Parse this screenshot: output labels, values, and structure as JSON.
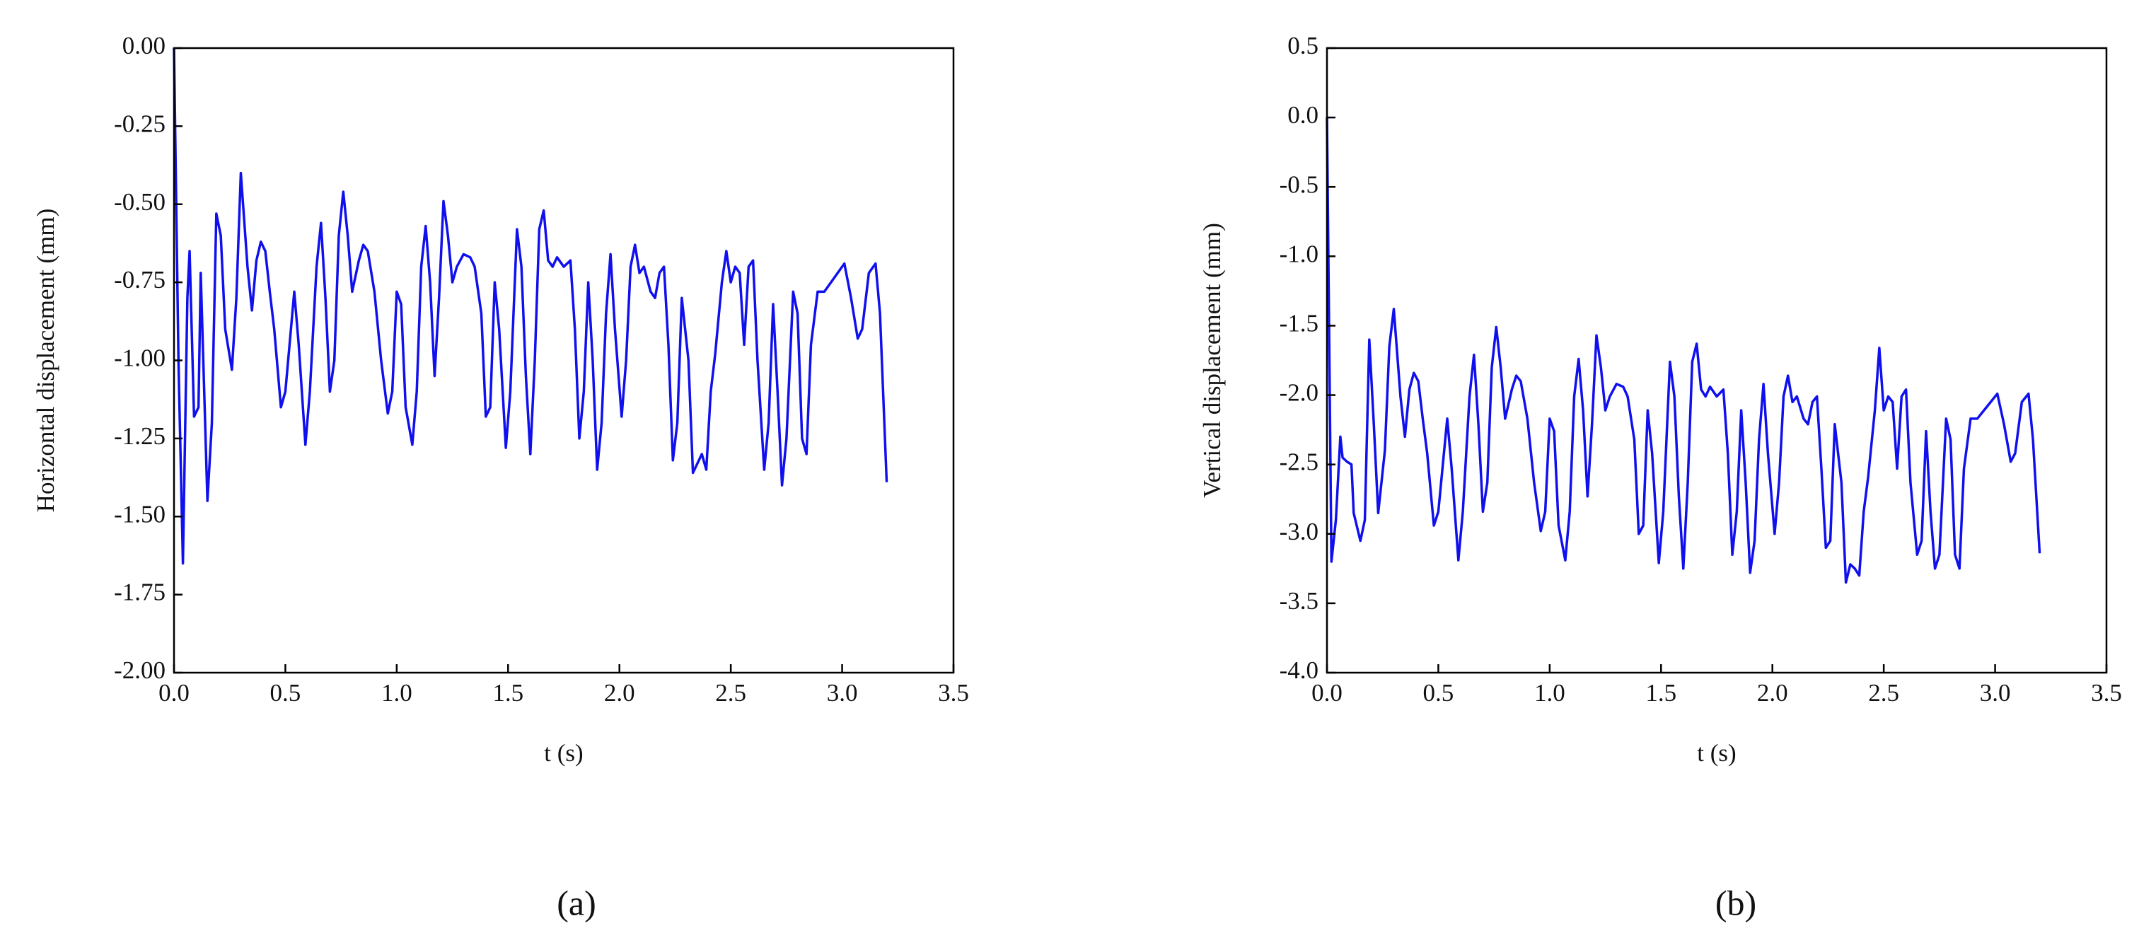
{
  "chart_data": [
    {
      "type": "line",
      "x": [
        0.0,
        0.02,
        0.04,
        0.06,
        0.07,
        0.09,
        0.11,
        0.12,
        0.15,
        0.17,
        0.19,
        0.21,
        0.23,
        0.26,
        0.28,
        0.3,
        0.33,
        0.35,
        0.37,
        0.39,
        0.41,
        0.43,
        0.45,
        0.48,
        0.5,
        0.54,
        0.56,
        0.59,
        0.61,
        0.64,
        0.66,
        0.68,
        0.7,
        0.72,
        0.74,
        0.76,
        0.78,
        0.8,
        0.83,
        0.85,
        0.87,
        0.9,
        0.93,
        0.96,
        0.98,
        1.0,
        1.02,
        1.04,
        1.07,
        1.09,
        1.11,
        1.13,
        1.15,
        1.17,
        1.19,
        1.21,
        1.23,
        1.25,
        1.27,
        1.3,
        1.33,
        1.35,
        1.38,
        1.4,
        1.42,
        1.44,
        1.46,
        1.49,
        1.51,
        1.54,
        1.56,
        1.58,
        1.6,
        1.62,
        1.64,
        1.66,
        1.68,
        1.7,
        1.72,
        1.75,
        1.78,
        1.8,
        1.82,
        1.84,
        1.86,
        1.88,
        1.9,
        1.92,
        1.94,
        1.96,
        1.98,
        2.01,
        2.03,
        2.05,
        2.07,
        2.09,
        2.11,
        2.14,
        2.16,
        2.18,
        2.2,
        2.22,
        2.24,
        2.26,
        2.28,
        2.31,
        2.33,
        2.35,
        2.37,
        2.39,
        2.41,
        2.43,
        2.46,
        2.48,
        2.5,
        2.52,
        2.54,
        2.56,
        2.58,
        2.6,
        2.62,
        2.65,
        2.67,
        2.69,
        2.71,
        2.73,
        2.75,
        2.78,
        2.8,
        2.82,
        2.84,
        2.86,
        2.89,
        2.92,
        2.95,
        2.98,
        3.01,
        3.04,
        3.07,
        3.09,
        3.12,
        3.15,
        3.17,
        3.2
      ],
      "values": [
        0.0,
        -1.0,
        -1.65,
        -0.8,
        -0.65,
        -1.18,
        -1.15,
        -0.72,
        -1.45,
        -1.2,
        -0.53,
        -0.6,
        -0.9,
        -1.03,
        -0.8,
        -0.4,
        -0.7,
        -0.84,
        -0.68,
        -0.62,
        -0.65,
        -0.78,
        -0.9,
        -1.15,
        -1.1,
        -0.78,
        -0.95,
        -1.27,
        -1.1,
        -0.7,
        -0.56,
        -0.8,
        -1.1,
        -1.0,
        -0.6,
        -0.46,
        -0.6,
        -0.78,
        -0.68,
        -0.63,
        -0.65,
        -0.78,
        -1.0,
        -1.17,
        -1.1,
        -0.78,
        -0.82,
        -1.15,
        -1.27,
        -1.1,
        -0.7,
        -0.57,
        -0.75,
        -1.05,
        -0.8,
        -0.49,
        -0.6,
        -0.75,
        -0.7,
        -0.66,
        -0.67,
        -0.7,
        -0.85,
        -1.18,
        -1.15,
        -0.75,
        -0.9,
        -1.28,
        -1.1,
        -0.58,
        -0.7,
        -1.05,
        -1.3,
        -1.0,
        -0.58,
        -0.52,
        -0.68,
        -0.7,
        -0.67,
        -0.7,
        -0.68,
        -0.9,
        -1.25,
        -1.1,
        -0.75,
        -1.0,
        -1.35,
        -1.2,
        -0.85,
        -0.66,
        -0.9,
        -1.18,
        -1.0,
        -0.7,
        -0.63,
        -0.72,
        -0.7,
        -0.78,
        -0.8,
        -0.72,
        -0.7,
        -0.95,
        -1.32,
        -1.2,
        -0.8,
        -1.0,
        -1.36,
        -1.33,
        -1.3,
        -1.35,
        -1.1,
        -0.98,
        -0.75,
        -0.65,
        -0.75,
        -0.7,
        -0.72,
        -0.95,
        -0.7,
        -0.68,
        -1.0,
        -1.35,
        -1.2,
        -0.82,
        -1.1,
        -1.4,
        -1.25,
        -0.78,
        -0.85,
        -1.25,
        -1.3,
        -0.95,
        -0.78,
        -0.78,
        -0.75,
        -0.72,
        -0.69,
        -0.8,
        -0.93,
        -0.9,
        -0.72,
        -0.69,
        -0.85,
        -1.39
      ],
      "color": "#1010ee",
      "x_label": "t (s)",
      "y_label": "Horizontal displacement (mm)",
      "caption": "(a)",
      "xlim": [
        0,
        3.5
      ],
      "ylim": [
        -2,
        0
      ],
      "xticks": [
        {
          "value": 0,
          "label": "0.0"
        },
        0.5,
        {
          "value": 1,
          "label": "1.0"
        },
        1.5,
        {
          "value": 2,
          "label": "2.0"
        },
        2.5,
        {
          "value": 3,
          "label": "3.0"
        },
        3.5
      ],
      "yticks": [
        {
          "value": -2,
          "label": "-2.00"
        },
        -1.75,
        {
          "value": -1.5,
          "label": "-1.50"
        },
        -1.25,
        {
          "value": -1,
          "label": "-1.00"
        },
        -0.75,
        {
          "value": -0.5,
          "label": "-0.50"
        },
        -0.25,
        {
          "value": 0,
          "label": "0.00"
        }
      ]
    },
    {
      "type": "line",
      "x": [
        0.0,
        0.02,
        0.04,
        0.06,
        0.07,
        0.09,
        0.11,
        0.12,
        0.15,
        0.17,
        0.19,
        0.21,
        0.23,
        0.26,
        0.28,
        0.3,
        0.33,
        0.35,
        0.37,
        0.39,
        0.41,
        0.43,
        0.45,
        0.48,
        0.5,
        0.54,
        0.56,
        0.59,
        0.61,
        0.64,
        0.66,
        0.68,
        0.7,
        0.72,
        0.74,
        0.76,
        0.78,
        0.8,
        0.83,
        0.85,
        0.87,
        0.9,
        0.93,
        0.96,
        0.98,
        1.0,
        1.02,
        1.04,
        1.07,
        1.09,
        1.11,
        1.13,
        1.15,
        1.17,
        1.19,
        1.21,
        1.23,
        1.25,
        1.27,
        1.3,
        1.33,
        1.35,
        1.38,
        1.4,
        1.42,
        1.44,
        1.46,
        1.49,
        1.51,
        1.54,
        1.56,
        1.58,
        1.6,
        1.62,
        1.64,
        1.66,
        1.68,
        1.7,
        1.72,
        1.75,
        1.78,
        1.8,
        1.82,
        1.84,
        1.86,
        1.88,
        1.9,
        1.92,
        1.94,
        1.96,
        1.98,
        2.01,
        2.03,
        2.05,
        2.07,
        2.09,
        2.11,
        2.14,
        2.16,
        2.18,
        2.2,
        2.22,
        2.24,
        2.26,
        2.28,
        2.31,
        2.33,
        2.35,
        2.37,
        2.39,
        2.41,
        2.43,
        2.46,
        2.48,
        2.5,
        2.52,
        2.54,
        2.56,
        2.58,
        2.6,
        2.62,
        2.65,
        2.67,
        2.69,
        2.71,
        2.73,
        2.75,
        2.78,
        2.8,
        2.82,
        2.84,
        2.86,
        2.89,
        2.92,
        2.95,
        2.98,
        3.01,
        3.04,
        3.07,
        3.09,
        3.12,
        3.15,
        3.17,
        3.2
      ],
      "values": [
        0.0,
        -3.2,
        -2.9,
        -2.3,
        -2.45,
        -2.48,
        -2.5,
        -2.85,
        -3.05,
        -2.9,
        -1.6,
        -2.2,
        -2.85,
        -2.4,
        -1.65,
        -1.38,
        -2.01,
        -2.3,
        -1.96,
        -1.84,
        -1.9,
        -2.17,
        -2.42,
        -2.94,
        -2.84,
        -2.17,
        -2.53,
        -3.19,
        -2.84,
        -2.01,
        -1.71,
        -2.21,
        -2.84,
        -2.63,
        -1.8,
        -1.51,
        -1.8,
        -2.17,
        -1.96,
        -1.86,
        -1.9,
        -2.17,
        -2.63,
        -2.98,
        -2.84,
        -2.17,
        -2.26,
        -2.94,
        -3.19,
        -2.84,
        -2.01,
        -1.74,
        -2.11,
        -2.73,
        -2.21,
        -1.57,
        -1.8,
        -2.11,
        -2.01,
        -1.92,
        -1.94,
        -2.01,
        -2.32,
        -3.0,
        -2.94,
        -2.11,
        -2.42,
        -3.21,
        -2.84,
        -1.76,
        -2.01,
        -2.73,
        -3.25,
        -2.63,
        -1.76,
        -1.63,
        -1.96,
        -2.01,
        -1.94,
        -2.01,
        -1.96,
        -2.42,
        -3.15,
        -2.84,
        -2.11,
        -2.63,
        -3.28,
        -3.05,
        -2.32,
        -1.92,
        -2.42,
        -3.0,
        -2.63,
        -2.01,
        -1.86,
        -2.05,
        -2.01,
        -2.17,
        -2.21,
        -2.05,
        -2.01,
        -2.53,
        -3.1,
        -3.05,
        -2.21,
        -2.63,
        -3.35,
        -3.22,
        -3.25,
        -3.3,
        -2.84,
        -2.59,
        -2.11,
        -1.66,
        -2.11,
        -2.01,
        -2.05,
        -2.53,
        -2.01,
        -1.96,
        -2.63,
        -3.15,
        -3.05,
        -2.26,
        -2.84,
        -3.25,
        -3.15,
        -2.17,
        -2.32,
        -3.15,
        -3.25,
        -2.53,
        -2.17,
        -2.17,
        -2.11,
        -2.05,
        -1.99,
        -2.21,
        -2.48,
        -2.42,
        -2.05,
        -1.99,
        -2.32,
        -3.14
      ],
      "color": "#1010ee",
      "x_label": "t (s)",
      "y_label": "Vertical displacement (mm)",
      "caption": "(b)",
      "xlim": [
        0,
        3.5
      ],
      "ylim": [
        -4,
        0.5
      ],
      "xticks": [
        {
          "value": 0,
          "label": "0.0"
        },
        0.5,
        {
          "value": 1,
          "label": "1.0"
        },
        1.5,
        {
          "value": 2,
          "label": "2.0"
        },
        2.5,
        {
          "value": 3,
          "label": "3.0"
        },
        3.5
      ],
      "yticks": [
        {
          "value": -4,
          "label": "-4.0"
        },
        -3.5,
        {
          "value": -3,
          "label": "-3.0"
        },
        -2.5,
        {
          "value": -2,
          "label": "-2.0"
        },
        -1.5,
        {
          "value": -1,
          "label": "-1.0"
        },
        -0.5,
        {
          "value": 0,
          "label": "0.0"
        },
        0.5
      ]
    }
  ]
}
